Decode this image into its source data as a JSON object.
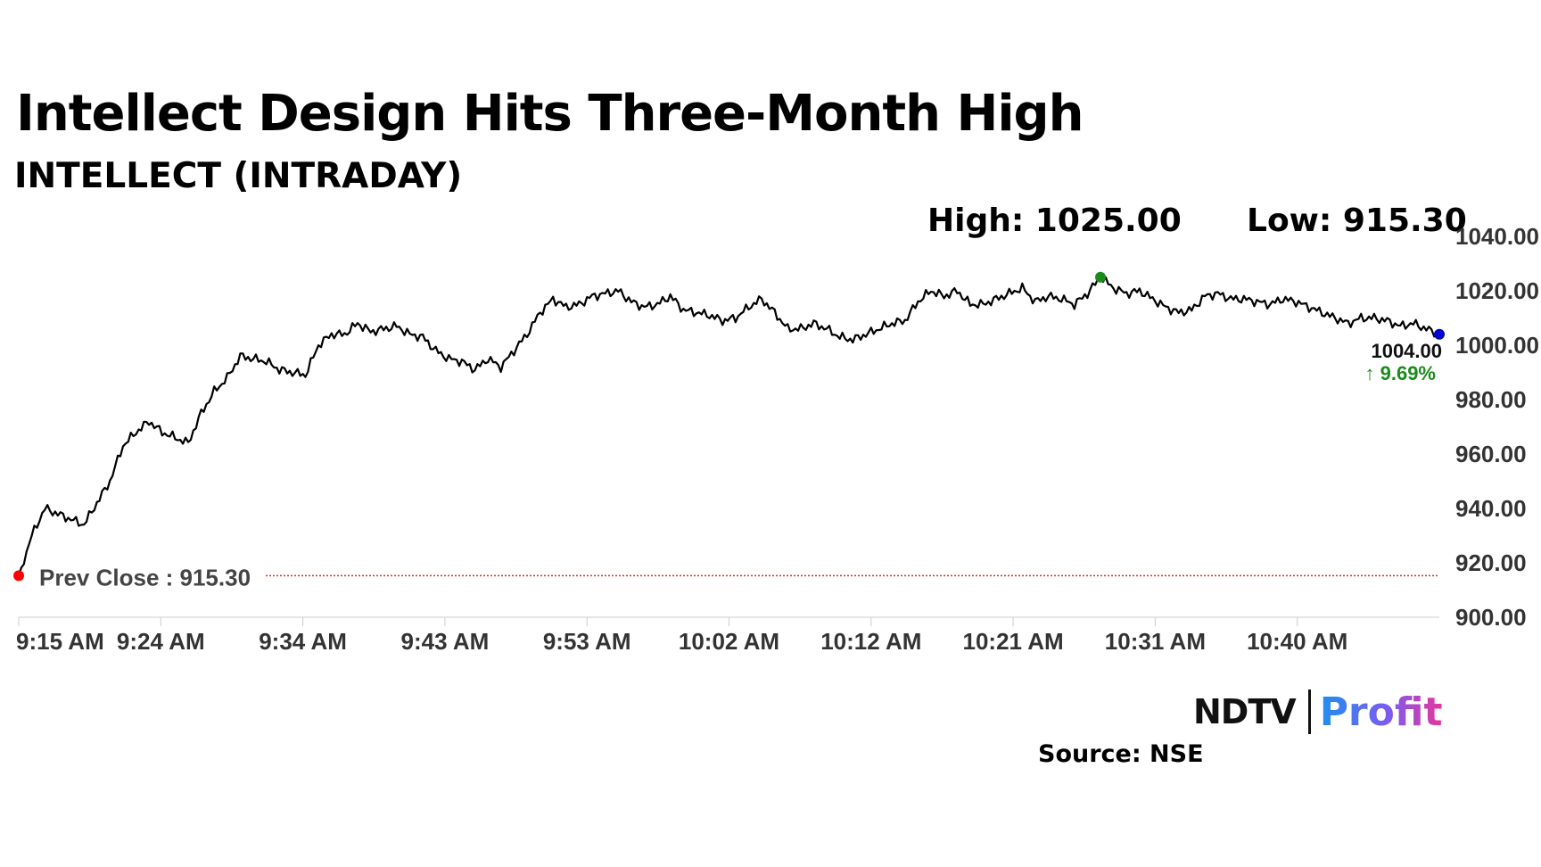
{
  "header": {
    "title": "Intellect Design Hits Three-Month High",
    "subtitle": "INTELLECT (INTRADAY)"
  },
  "stats": {
    "high_label": "High: 1025.00",
    "low_label": "Low: 915.30"
  },
  "footer": {
    "source": "Source: NSE",
    "logo_ndtv": "NDTV",
    "logo_profit": "Profit"
  },
  "colors": {
    "line": "#000000",
    "prev_close_line": "#c0392b",
    "start_marker": "#ff0000",
    "high_marker": "#1a8c1a",
    "last_marker": "#0000cc",
    "change_positive": "#1a8c1a",
    "axis_text": "#333333"
  },
  "chart_data": {
    "type": "line",
    "title": "INTELLECT (INTRADAY)",
    "xlabel": "",
    "ylabel": "",
    "ylim": [
      900,
      1040
    ],
    "yticks": [
      "900.00",
      "920.00",
      "940.00",
      "960.00",
      "980.00",
      "1000.00",
      "1020.00",
      "1040.00"
    ],
    "xticks": [
      "9:15 AM",
      "9:24 AM",
      "9:34 AM",
      "9:43 AM",
      "9:53 AM",
      "10:02 AM",
      "10:12 AM",
      "10:21 AM",
      "10:31 AM",
      "10:40 AM"
    ],
    "prev_close": 915.3,
    "prev_close_label": "Prev Close : 915.30",
    "high": 1025.0,
    "low": 915.3,
    "last_value_label": "1004.00",
    "change_label": "↑ 9.69%",
    "grid": false,
    "series": [
      {
        "values": [
          915.3,
          930,
          940,
          938,
          936,
          934,
          942,
          950,
          963,
          968,
          972,
          968,
          966,
          964,
          975,
          983,
          988,
          996,
          995,
          994,
          991,
          990,
          989,
          1000,
          1004,
          1004,
          1008,
          1005,
          1006,
          1007,
          1004,
          1003,
          998,
          995,
          994,
          991,
          995,
          992,
          998,
          1004,
          1012,
          1017,
          1014,
          1015,
          1018,
          1019,
          1020,
          1016,
          1014,
          1015,
          1018,
          1013,
          1012,
          1011,
          1009,
          1010,
          1014,
          1017,
          1012,
          1006,
          1006,
          1008,
          1006,
          1003,
          1002,
          1004,
          1006,
          1008,
          1009,
          1016,
          1020,
          1018,
          1020,
          1015,
          1015,
          1017,
          1019,
          1021,
          1016,
          1018,
          1017,
          1015,
          1019,
          1025,
          1021,
          1019,
          1020,
          1017,
          1014,
          1012,
          1013,
          1018,
          1019,
          1017,
          1017,
          1016,
          1015,
          1017,
          1016,
          1014,
          1012,
          1010,
          1008,
          1010,
          1010,
          1009,
          1007,
          1008,
          1006,
          1004
        ]
      }
    ]
  }
}
